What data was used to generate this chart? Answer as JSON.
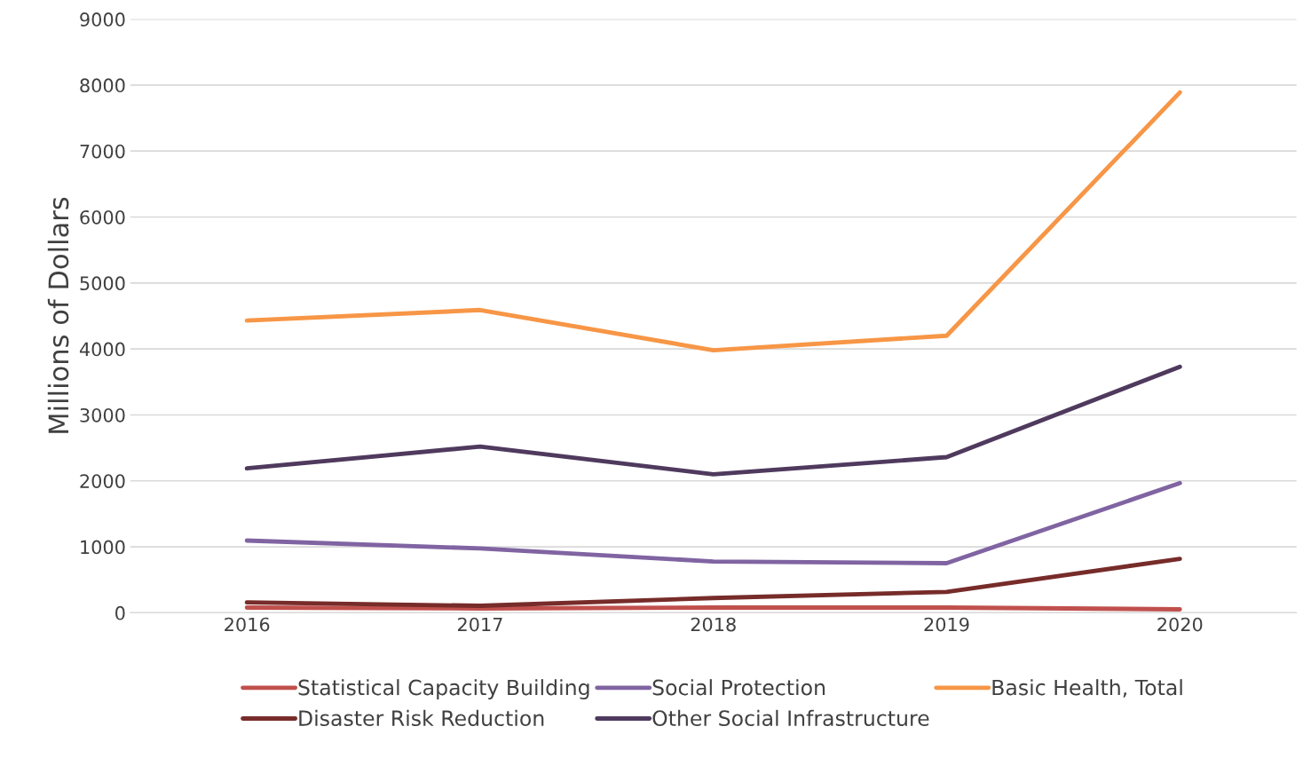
{
  "chart_data": {
    "type": "line",
    "ylabel": "Millions of Dollars",
    "categories": [
      "2016",
      "2017",
      "2018",
      "2019",
      "2020"
    ],
    "series": [
      {
        "name": "Statistical Capacity Building",
        "color": "#c0504d",
        "values": [
          80,
          66,
          80,
          80,
          53
        ]
      },
      {
        "name": "Social Protection",
        "color": "#8064a2",
        "values": [
          1095,
          976,
          778,
          752,
          1966
        ]
      },
      {
        "name": "Basic Health, Total",
        "color": "#f79646",
        "values": [
          4430,
          4590,
          3980,
          4200,
          7890
        ]
      },
      {
        "name": "Disaster Risk Reduction",
        "color": "#772c2a",
        "values": [
          158,
          106,
          224,
          317,
          818
        ]
      },
      {
        "name": "Other Social Infrastructure",
        "color": "#4f3a5e",
        "values": [
          2190,
          2520,
          2100,
          2360,
          3730
        ]
      }
    ],
    "ylim": [
      0,
      9000
    ],
    "yticks": [
      0,
      1000,
      2000,
      3000,
      4000,
      5000,
      6000,
      7000,
      8000,
      9000
    ],
    "grid": "y",
    "legend": "bottom",
    "marker": "none",
    "line_style": "solid"
  }
}
